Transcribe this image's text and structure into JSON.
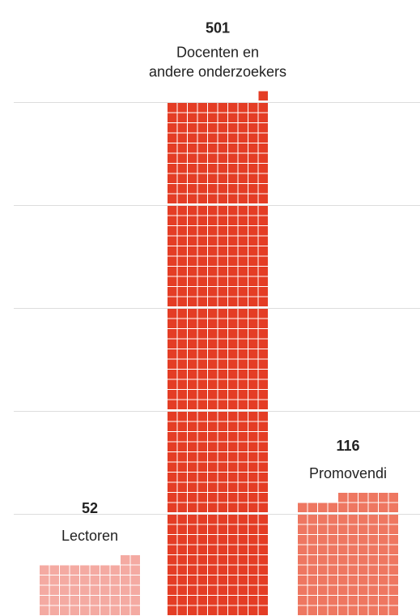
{
  "chart_data": {
    "type": "waffle",
    "units_per_square": 1,
    "columns_per_stack": 10,
    "categories": [
      {
        "name": "Lectoren",
        "label_lines": [
          "Lectoren"
        ],
        "value": 52,
        "value_label": "52",
        "color": "#f4aaa2"
      },
      {
        "name": "Docenten en andere onderzoekers",
        "label_lines": [
          "Docenten en",
          "andere onderzoekers"
        ],
        "value": 501,
        "value_label": "501",
        "color": "#e43d25"
      },
      {
        "name": "Promovendi",
        "label_lines": [
          "Promovendi"
        ],
        "value": 116,
        "value_label": "116",
        "color": "#ee7761"
      }
    ],
    "grid": true,
    "gridline_color": "#dddddd"
  }
}
